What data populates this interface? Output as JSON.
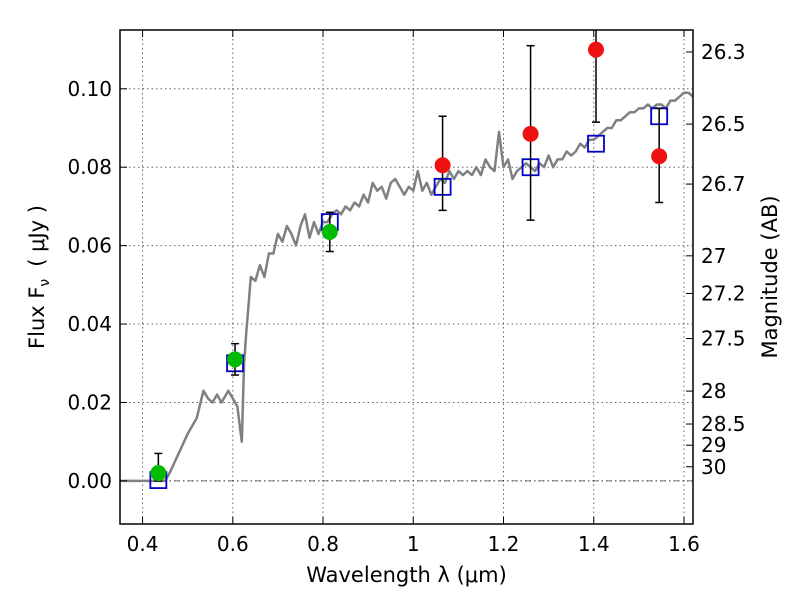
{
  "chart_data": {
    "type": "scatter",
    "xlabel": "Wavelength  λ (μm)",
    "ylabel": "Flux  F",
    "ylabel_sub": "ν",
    "ylabel_unit": "( μJy )",
    "y2label": "Magnitude (AB)",
    "xlim": [
      0.35,
      1.62
    ],
    "ylim": [
      -0.011,
      0.115
    ],
    "grid": true,
    "x_ticks": [
      0.4,
      0.6,
      0.8,
      1.0,
      1.2,
      1.4,
      1.6
    ],
    "x_tick_labels": [
      "0.4",
      "0.6",
      "0.8",
      "1",
      "1.2",
      "1.4",
      "1.6"
    ],
    "y_ticks": [
      0.0,
      0.02,
      0.04,
      0.06,
      0.08,
      0.1
    ],
    "y_tick_labels": [
      "0.00",
      "0.02",
      "0.04",
      "0.06",
      "0.08",
      "0.10"
    ],
    "mag_ticks": [
      {
        "label": "26.3",
        "flux": 0.1094
      },
      {
        "label": "26.5",
        "flux": 0.091
      },
      {
        "label": "26.7",
        "flux": 0.0757
      },
      {
        "label": "27",
        "flux": 0.0574
      },
      {
        "label": "27.2",
        "flux": 0.0478
      },
      {
        "label": "27.5",
        "flux": 0.0363
      },
      {
        "label": "28",
        "flux": 0.0229
      },
      {
        "label": "28.5",
        "flux": 0.0145
      },
      {
        "label": "29",
        "flux": 0.0091
      },
      {
        "label": "30",
        "flux": 0.0036
      }
    ],
    "series": [
      {
        "kind": "line",
        "color": "#808080",
        "x": [
          0.35,
          0.45,
          0.46,
          0.48,
          0.5,
          0.52,
          0.535,
          0.545,
          0.555,
          0.565,
          0.575,
          0.59,
          0.6,
          0.61,
          0.62,
          0.625,
          0.63,
          0.635,
          0.64,
          0.65,
          0.66,
          0.67,
          0.68,
          0.69,
          0.7,
          0.71,
          0.72,
          0.73,
          0.74,
          0.75,
          0.76,
          0.77,
          0.78,
          0.79,
          0.8,
          0.81,
          0.82,
          0.83,
          0.84,
          0.85,
          0.86,
          0.87,
          0.88,
          0.89,
          0.9,
          0.91,
          0.92,
          0.93,
          0.94,
          0.95,
          0.96,
          0.97,
          0.98,
          0.99,
          1.0,
          1.01,
          1.02,
          1.03,
          1.04,
          1.05,
          1.06,
          1.07,
          1.08,
          1.09,
          1.1,
          1.11,
          1.12,
          1.13,
          1.14,
          1.15,
          1.16,
          1.17,
          1.18,
          1.19,
          1.2,
          1.21,
          1.22,
          1.23,
          1.24,
          1.25,
          1.26,
          1.27,
          1.28,
          1.29,
          1.3,
          1.31,
          1.32,
          1.33,
          1.34,
          1.35,
          1.36,
          1.37,
          1.38,
          1.39,
          1.4,
          1.41,
          1.42,
          1.43,
          1.44,
          1.45,
          1.46,
          1.47,
          1.48,
          1.49,
          1.5,
          1.51,
          1.52,
          1.53,
          1.54,
          1.55,
          1.56,
          1.57,
          1.58,
          1.59,
          1.6,
          1.61,
          1.62
        ],
        "y": [
          0.0,
          0.0,
          0.002,
          0.007,
          0.012,
          0.016,
          0.023,
          0.021,
          0.02,
          0.022,
          0.02,
          0.023,
          0.021,
          0.019,
          0.01,
          0.03,
          0.038,
          0.045,
          0.052,
          0.051,
          0.055,
          0.052,
          0.058,
          0.058,
          0.063,
          0.061,
          0.065,
          0.063,
          0.06,
          0.065,
          0.068,
          0.062,
          0.066,
          0.063,
          0.066,
          0.066,
          0.068,
          0.069,
          0.068,
          0.07,
          0.069,
          0.071,
          0.07,
          0.073,
          0.071,
          0.076,
          0.074,
          0.075,
          0.072,
          0.076,
          0.077,
          0.075,
          0.073,
          0.075,
          0.074,
          0.079,
          0.074,
          0.076,
          0.073,
          0.075,
          0.077,
          0.076,
          0.079,
          0.077,
          0.079,
          0.078,
          0.079,
          0.078,
          0.08,
          0.078,
          0.082,
          0.08,
          0.079,
          0.089,
          0.08,
          0.082,
          0.077,
          0.079,
          0.08,
          0.081,
          0.08,
          0.079,
          0.081,
          0.08,
          0.083,
          0.08,
          0.082,
          0.082,
          0.084,
          0.083,
          0.084,
          0.086,
          0.085,
          0.087,
          0.087,
          0.088,
          0.089,
          0.09,
          0.09,
          0.092,
          0.092,
          0.093,
          0.094,
          0.094,
          0.095,
          0.095,
          0.096,
          0.095,
          0.096,
          0.096,
          0.095,
          0.097,
          0.097,
          0.098,
          0.099,
          0.099,
          0.098
        ]
      },
      {
        "kind": "open-square",
        "color": "#0000cc",
        "x": [
          0.435,
          0.605,
          0.815,
          1.065,
          1.26,
          1.405,
          1.545
        ],
        "y": [
          0.0002,
          0.03,
          0.066,
          0.075,
          0.08,
          0.086,
          0.093
        ]
      },
      {
        "kind": "filled-circle",
        "color": "#00bb00",
        "x": [
          0.435,
          0.605,
          0.815
        ],
        "y": [
          0.002,
          0.031,
          0.0635
        ],
        "yerr_low": [
          0.0,
          0.027,
          0.0585
        ],
        "yerr_high": [
          0.007,
          0.035,
          0.0685
        ]
      },
      {
        "kind": "filled-circle",
        "color": "#ee1111",
        "x": [
          1.065,
          1.26,
          1.405,
          1.545
        ],
        "y": [
          0.0805,
          0.0885,
          0.11,
          0.0828
        ],
        "yerr_low": [
          0.069,
          0.0665,
          0.0915,
          0.071
        ],
        "yerr_high": [
          0.093,
          0.111,
          0.115,
          0.095
        ]
      }
    ]
  }
}
